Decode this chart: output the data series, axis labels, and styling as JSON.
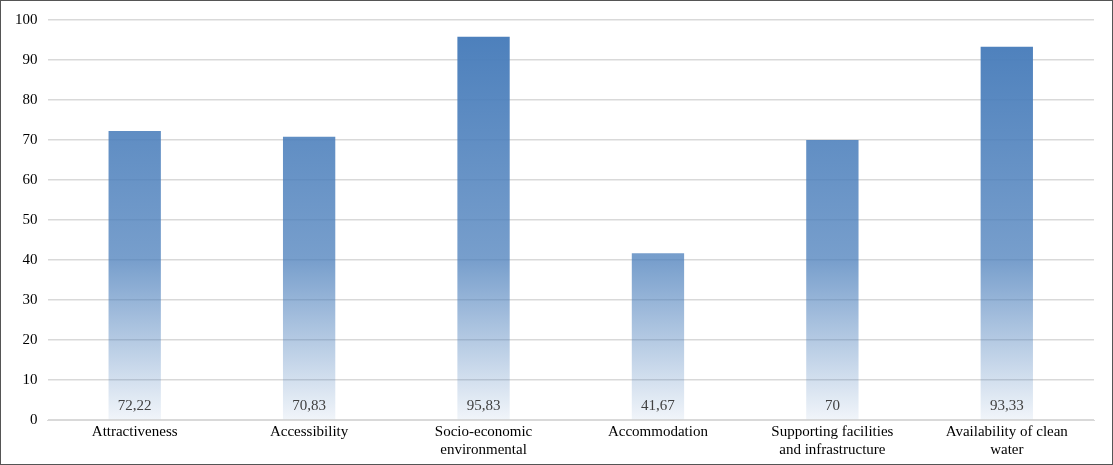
{
  "chart_data": {
    "type": "bar",
    "categories": [
      "Attractiveness",
      "Accessibility",
      "Socio-economic environmental",
      "Accommodation",
      "Supporting facilities and infrastructure",
      "Availability of clean water"
    ],
    "values": [
      72.22,
      70.83,
      95.83,
      41.67,
      70,
      93.33
    ],
    "value_labels": [
      "72,22",
      "70,83",
      "95,83",
      "41,67",
      "70",
      "93,33"
    ],
    "color": "#4a7ebb",
    "ylim": [
      0,
      100
    ],
    "yticks": [
      0,
      10,
      20,
      30,
      40,
      50,
      60,
      70,
      80,
      90,
      100
    ],
    "grid": "y",
    "legend": false
  }
}
